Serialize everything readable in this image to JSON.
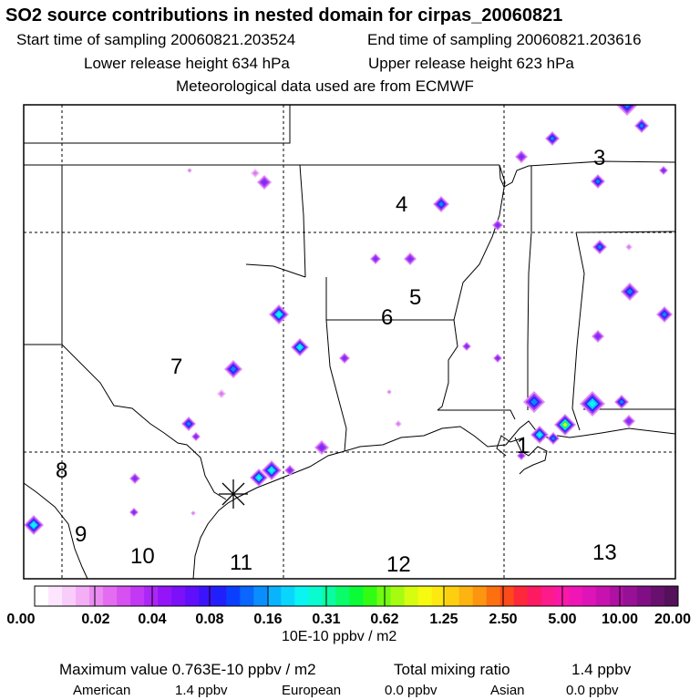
{
  "header": {
    "title": "SO2 source contributions in nested domain for cirpas_20060821",
    "start_time": "Start time of sampling 20060821.203524",
    "end_time": "End time of sampling 20060821.203616",
    "lower_release": "Lower release height  634 hPa",
    "upper_release": "Upper release height  623 hPa",
    "met_data": "Meteorological data used are from ECMWF"
  },
  "map": {
    "region_labels": [
      "1",
      "3",
      "4",
      "5",
      "6",
      "7",
      "8",
      "9",
      "10",
      "11",
      "12",
      "13"
    ],
    "receptor_marker": "x-marker"
  },
  "colorbar": {
    "tick_labels": [
      "0.00",
      "0.02",
      "0.04",
      "0.08",
      "0.16",
      "0.31",
      "0.62",
      "1.25",
      "2.50",
      "5.00",
      "10.00",
      "20.00"
    ],
    "colors": [
      "#ffffff",
      "#fde6fd",
      "#f9cdf9",
      "#f3aef6",
      "#ea8cf2",
      "#e46cf0",
      "#d650f2",
      "#c238f4",
      "#ab27f5",
      "#9415f7",
      "#7c10f8",
      "#600ffa",
      "#3c14fb",
      "#2020fd",
      "#0a40fd",
      "#0a66fd",
      "#0a8efd",
      "#0ab4fd",
      "#0ad6fb",
      "#0af5f2",
      "#0afbd0",
      "#0afca0",
      "#0afc6a",
      "#0afc36",
      "#32fc14",
      "#70fc10",
      "#a6fc10",
      "#d6fc10",
      "#f6fa10",
      "#fde810",
      "#fdcf10",
      "#fdb310",
      "#fd9510",
      "#fd7010",
      "#fd4a1a",
      "#fd283c",
      "#fd1a62",
      "#fd1a8a",
      "#fb18a8",
      "#f016b6",
      "#de14b8",
      "#c812b0",
      "#b010a4",
      "#981096",
      "#800e84",
      "#68106e",
      "#541059"
    ],
    "unit": "10E-10 ppbv / m2"
  },
  "summary": {
    "max_value": "Maximum value  0.763E-10 ppbv / m2",
    "total_mixing_label": "Total mixing ratio",
    "total_mixing_value": "1.4 ppbv",
    "american_label": "American",
    "american_value": "1.4 ppbv",
    "european_label": "European",
    "european_value": "0.0 ppbv",
    "asian_label": "Asian",
    "asian_value": "0.0 ppbv"
  }
}
